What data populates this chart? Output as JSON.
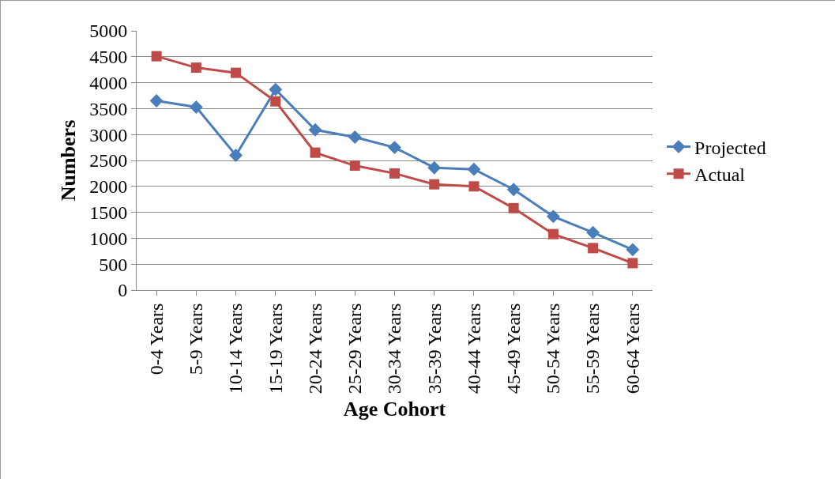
{
  "chart_data": {
    "type": "line",
    "xlabel": "Age Cohort",
    "ylabel": "Numbers",
    "categories": [
      "0-4 Years",
      "5-9 Years",
      "10-14 Years",
      "15-19 Years",
      "20-24 Years",
      "25-29 Years",
      "30-34 Years",
      "35-39 Years",
      "40-44 Years",
      "45-49 Years",
      "50-54 Years",
      "55-59 Years",
      "60-64 Years"
    ],
    "series": [
      {
        "name": "Projected",
        "color": "#4a7ebb",
        "marker": "diamond",
        "values": [
          3650,
          3530,
          2600,
          3870,
          3090,
          2950,
          2750,
          2360,
          2330,
          1940,
          1420,
          1110,
          780
        ]
      },
      {
        "name": "Actual",
        "color": "#be4b48",
        "marker": "square",
        "values": [
          4510,
          4290,
          4190,
          3640,
          2650,
          2400,
          2250,
          2040,
          2000,
          1580,
          1080,
          810,
          520
        ]
      }
    ],
    "ylim": [
      0,
      5000
    ],
    "yticks": [
      0,
      500,
      1000,
      1500,
      2000,
      2500,
      3000,
      3500,
      4000,
      4500,
      5000
    ],
    "grid": "y",
    "legend": "right",
    "line_style": "solid"
  }
}
